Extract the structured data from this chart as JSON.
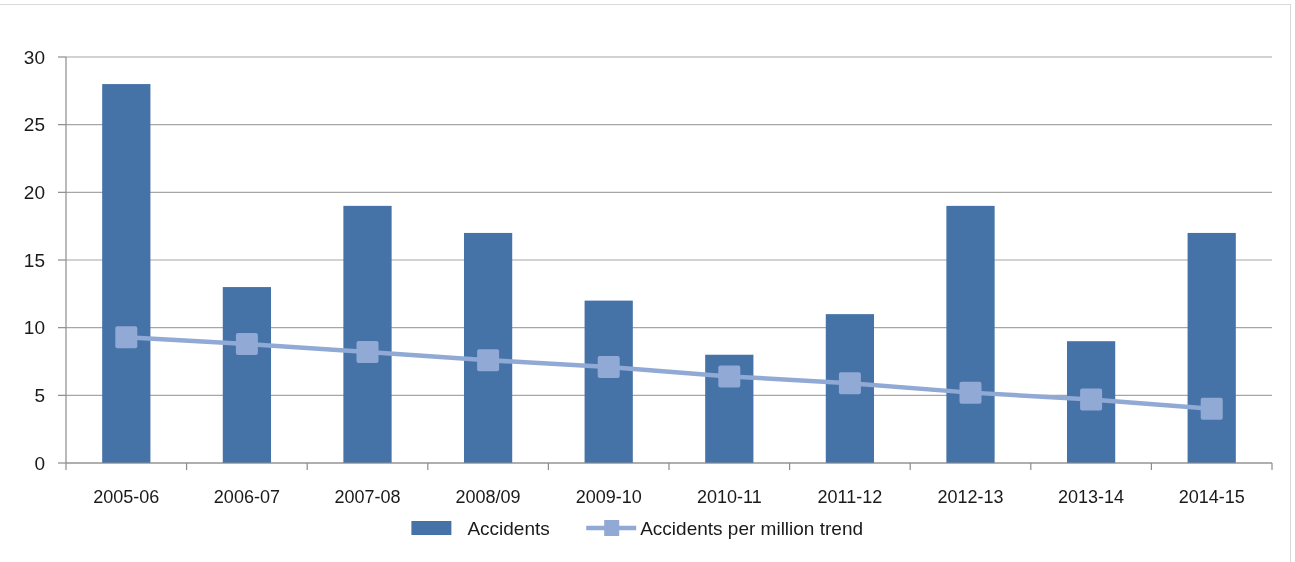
{
  "chart_data": {
    "type": "bar",
    "categories": [
      "2005-06",
      "2006-07",
      "2007-08",
      "2008/09",
      "2009-10",
      "2010-11",
      "2011-12",
      "2012-13",
      "2013-14",
      "2014-15"
    ],
    "series": [
      {
        "name": "Accidents",
        "color": "#4573a7",
        "values": [
          28,
          13,
          19,
          17,
          12,
          8,
          11,
          19,
          9,
          17
        ]
      },
      {
        "name": "Accidents per million trend",
        "type": "line",
        "color": "#91a9d5",
        "marker": "square",
        "values": [
          9.3,
          8.8,
          8.2,
          7.6,
          7.1,
          6.4,
          5.9,
          5.2,
          4.7,
          4.0
        ]
      }
    ],
    "ylim": [
      0,
      30
    ],
    "yticks": [
      0,
      5,
      10,
      15,
      20,
      25,
      30
    ],
    "grid": "y",
    "legend": "bottom"
  }
}
